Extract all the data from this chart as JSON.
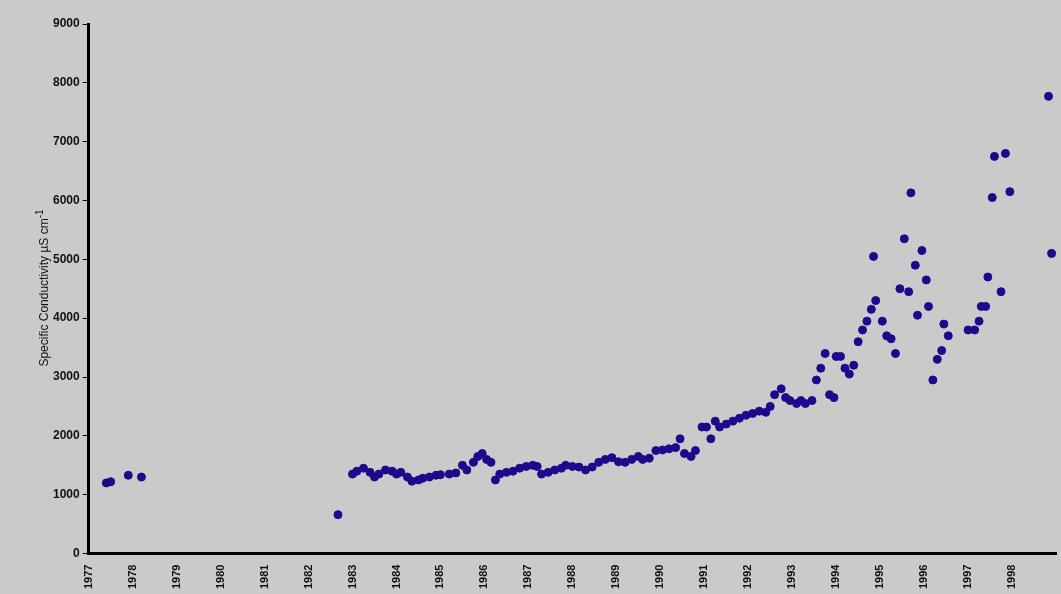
{
  "chart_data": {
    "type": "scatter",
    "ylabel": "Specific Conductivity µS cm$^{-1}$",
    "marker": "circle",
    "grid": false,
    "legend": false,
    "xlim": [
      1977,
      1999
    ],
    "xticks": [
      1977,
      1978,
      1979,
      1980,
      1981,
      1982,
      1983,
      1984,
      1985,
      1986,
      1987,
      1988,
      1989,
      1990,
      1991,
      1992,
      1993,
      1994,
      1995,
      1996,
      1997,
      1998
    ],
    "ylim": [
      0,
      9000
    ],
    "yticks": [
      0,
      1000,
      2000,
      3000,
      4000,
      5000,
      6000,
      7000,
      8000,
      9000
    ],
    "series": [
      {
        "color": "#1c0a8c",
        "x": [
          1977.4,
          1977.5,
          1977.9,
          1978.2,
          1982.67,
          1983.0,
          1983.1,
          1983.25,
          1983.4,
          1983.5,
          1983.6,
          1983.75,
          1983.9,
          1984.0,
          1984.1,
          1984.25,
          1984.35,
          1984.5,
          1984.6,
          1984.75,
          1984.9,
          1985.0,
          1985.2,
          1985.35,
          1985.5,
          1985.6,
          1985.75,
          1985.85,
          1985.95,
          1986.05,
          1986.15,
          1986.25,
          1986.35,
          1986.5,
          1986.65,
          1986.8,
          1986.95,
          1987.1,
          1987.2,
          1987.3,
          1987.45,
          1987.6,
          1987.75,
          1987.85,
          1988.0,
          1988.15,
          1988.3,
          1988.45,
          1988.6,
          1988.75,
          1988.9,
          1989.05,
          1989.2,
          1989.35,
          1989.5,
          1989.6,
          1989.75,
          1989.9,
          1990.05,
          1990.2,
          1990.35,
          1990.45,
          1990.55,
          1990.7,
          1990.8,
          1990.95,
          1991.05,
          1991.15,
          1991.25,
          1991.35,
          1991.5,
          1991.65,
          1991.8,
          1991.95,
          1992.1,
          1992.25,
          1992.4,
          1992.5,
          1992.6,
          1992.75,
          1992.85,
          1992.95,
          1993.1,
          1993.2,
          1993.3,
          1993.45,
          1993.55,
          1993.65,
          1993.75,
          1993.85,
          1993.95,
          1994.0,
          1994.1,
          1994.2,
          1994.3,
          1994.4,
          1994.5,
          1994.6,
          1994.7,
          1994.8,
          1994.85,
          1994.9,
          1995.05,
          1995.15,
          1995.25,
          1995.35,
          1995.45,
          1995.55,
          1995.65,
          1995.7,
          1995.8,
          1995.85,
          1995.95,
          1996.05,
          1996.1,
          1996.2,
          1996.3,
          1996.4,
          1996.45,
          1996.55,
          1997.0,
          1997.15,
          1997.25,
          1997.3,
          1997.4,
          1997.45,
          1997.55,
          1997.6,
          1997.75,
          1997.85,
          1997.95,
          1998.83,
          1998.9
        ],
        "values": [
          1200,
          1220,
          1330,
          1300,
          660,
          1350,
          1400,
          1450,
          1380,
          1300,
          1350,
          1420,
          1400,
          1350,
          1380,
          1300,
          1230,
          1250,
          1280,
          1300,
          1330,
          1340,
          1350,
          1370,
          1500,
          1420,
          1550,
          1650,
          1700,
          1600,
          1550,
          1250,
          1350,
          1380,
          1400,
          1450,
          1480,
          1500,
          1480,
          1350,
          1380,
          1420,
          1450,
          1500,
          1480,
          1470,
          1420,
          1470,
          1550,
          1600,
          1630,
          1560,
          1550,
          1600,
          1650,
          1600,
          1620,
          1750,
          1760,
          1780,
          1800,
          1950,
          1700,
          1650,
          1750,
          2150,
          2150,
          1950,
          2250,
          2150,
          2200,
          2250,
          2300,
          2350,
          2380,
          2420,
          2400,
          2500,
          2700,
          2800,
          2650,
          2600,
          2550,
          2600,
          2550,
          2600,
          2950,
          3150,
          3400,
          2700,
          2650,
          3350,
          3350,
          3150,
          3050,
          3200,
          3600,
          3800,
          3950,
          4150,
          5050,
          4300,
          3950,
          3700,
          3650,
          3400,
          4500,
          5350,
          4450,
          6130,
          4900,
          4050,
          5150,
          4650,
          4200,
          2950,
          3300,
          3450,
          3900,
          3700,
          3800,
          3800,
          3950,
          4200,
          4200,
          4700,
          6050,
          6750,
          4450,
          6800,
          6150,
          7770,
          5100
        ]
      }
    ]
  }
}
